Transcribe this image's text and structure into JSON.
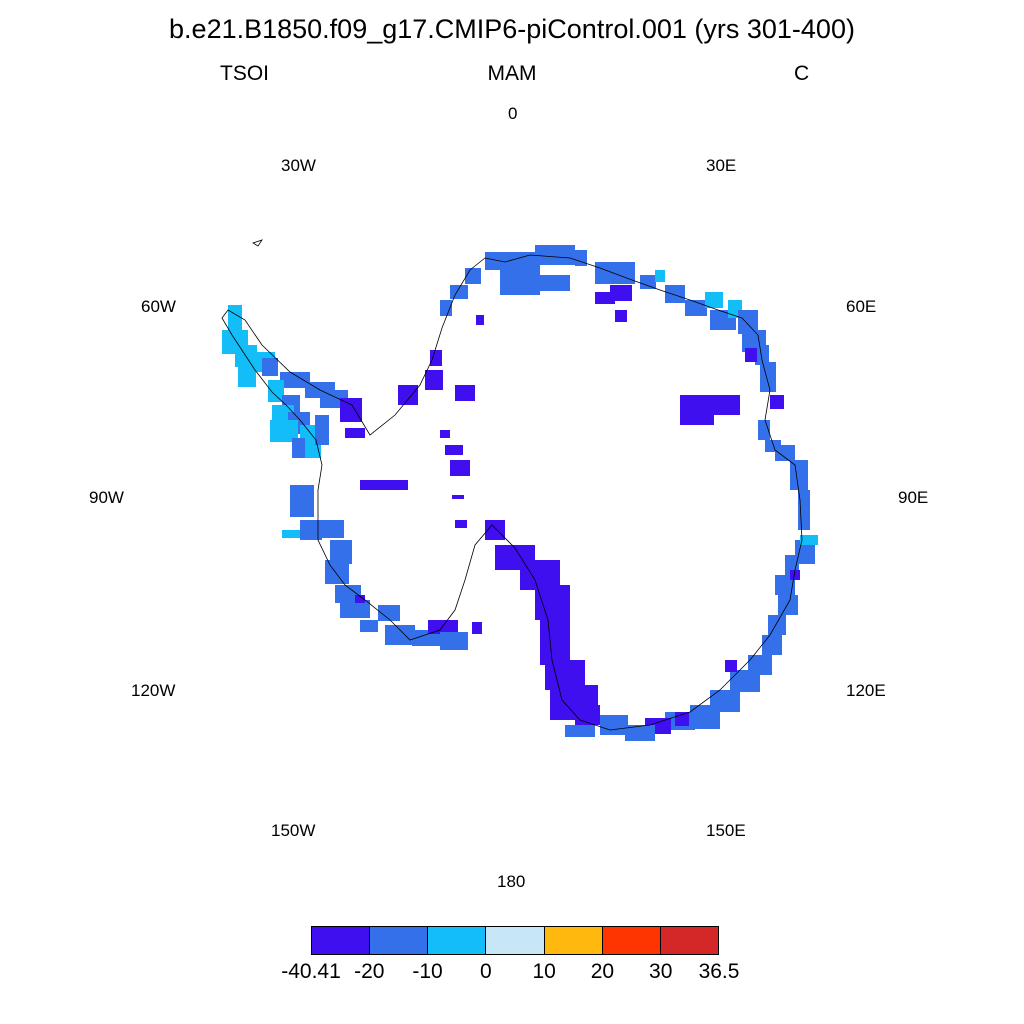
{
  "header": {
    "title": "b.e21.B1850.f09_g17.CMIP6-piControl.001 (yrs 301-400)",
    "left": "TSOI",
    "center": "MAM",
    "right": "C"
  },
  "longitude_labels": {
    "lon_0": "0",
    "lon_30e": "30E",
    "lon_60e": "60E",
    "lon_90e": "90E",
    "lon_120e": "120E",
    "lon_150e": "150E",
    "lon_180": "180",
    "lon_150w": "150W",
    "lon_120w": "120W",
    "lon_90w": "90W",
    "lon_60w": "60W",
    "lon_30w": "30W"
  },
  "colorbar": {
    "colors": [
      "#3f0ff0",
      "#3570eb",
      "#12bdf8",
      "#c7e6f6",
      "#feb80e",
      "#fe3500",
      "#d42828"
    ],
    "labels": [
      "-40.41",
      "-20",
      "-10",
      "0",
      "10",
      "20",
      "30",
      "36.5"
    ]
  }
}
